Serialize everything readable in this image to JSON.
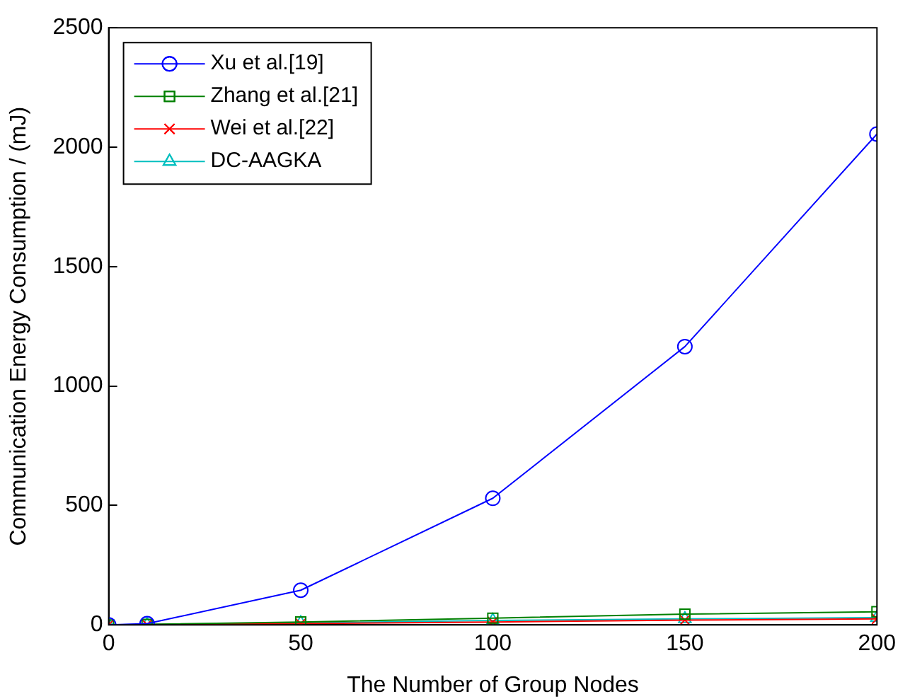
{
  "chart_data": {
    "type": "line",
    "xlabel": "The Number of Group Nodes",
    "ylabel": "Communication Energy Consumption / (mJ)",
    "x": [
      0,
      10,
      50,
      100,
      150,
      200
    ],
    "series": [
      {
        "name": "Xu et al.[19]",
        "color": "#0000ff",
        "marker": "circle",
        "values": [
          0,
          5,
          145,
          530,
          1165,
          2055
        ]
      },
      {
        "name": "Zhang et al.[21]",
        "color": "#008000",
        "marker": "square",
        "values": [
          0,
          2,
          12,
          28,
          45,
          55
        ]
      },
      {
        "name": "Wei et al.[22]",
        "color": "#ff0000",
        "marker": "cross",
        "values": [
          0,
          1,
          5,
          12,
          20,
          25
        ]
      },
      {
        "name": "DC-AAGKA",
        "color": "#00bfbf",
        "marker": "triangle",
        "values": [
          0,
          1,
          8,
          18,
          25,
          30
        ]
      }
    ],
    "xlim": [
      0,
      200
    ],
    "xticks": [
      0,
      50,
      100,
      150,
      200
    ],
    "ylim": [
      0,
      2500
    ],
    "yticks": [
      0,
      500,
      1000,
      1500,
      2000,
      2500
    ],
    "grid": false,
    "legend": "top left",
    "line_style": "solid"
  }
}
